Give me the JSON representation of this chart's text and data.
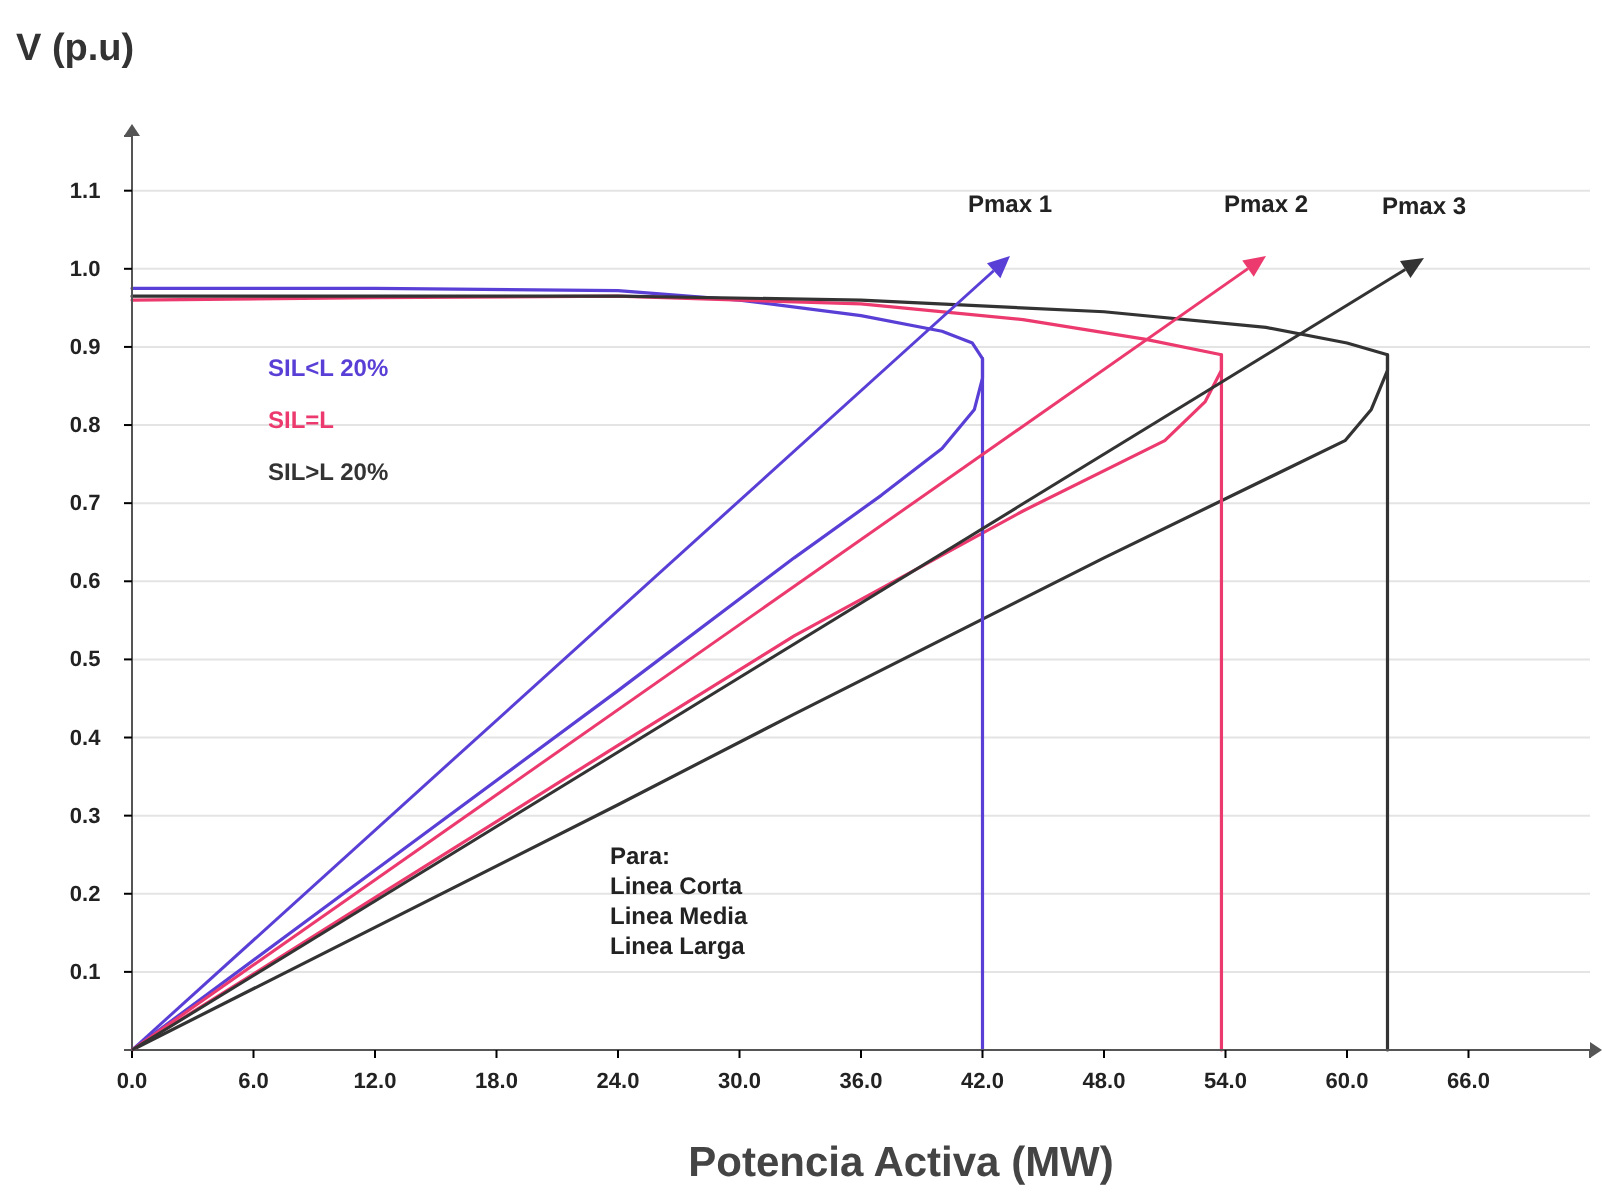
{
  "chart_data": {
    "type": "line",
    "xlabel": "Potencia Activa (MW)",
    "ylabel": "V (p.u)",
    "xlim": [
      0,
      72
    ],
    "ylim": [
      0,
      1.17
    ],
    "xticks": [
      {
        "value": 0,
        "label": "0.0"
      },
      {
        "value": 6,
        "label": "6.0"
      },
      {
        "value": 12,
        "label": "12.0"
      },
      {
        "value": 18,
        "label": "18.0"
      },
      {
        "value": 24,
        "label": "24.0"
      },
      {
        "value": 30,
        "label": "30.0"
      },
      {
        "value": 36,
        "label": "36.0"
      },
      {
        "value": 42,
        "label": "42.0"
      },
      {
        "value": 48,
        "label": "48.0"
      },
      {
        "value": 54,
        "label": "54.0"
      },
      {
        "value": 60,
        "label": "60.0"
      },
      {
        "value": 66,
        "label": "66.0"
      }
    ],
    "yticks": [
      0.1,
      0.2,
      0.3,
      0.4,
      0.5,
      0.6,
      0.7,
      0.8,
      0.9,
      {
        "value": 1,
        "label": "1.0"
      },
      1.1
    ],
    "grid": "y",
    "legend": "top left",
    "marker": "none",
    "line_style": "solid",
    "series": [
      {
        "name": "SIL<L 20%",
        "color": "#5a3fd6",
        "x": [
          0,
          12,
          24,
          30,
          36,
          40,
          41.5,
          42,
          42,
          41.6,
          40,
          37,
          32.7,
          24,
          12,
          0
        ],
        "values": [
          0.975,
          0.975,
          0.972,
          0.96,
          0.94,
          0.92,
          0.905,
          0.885,
          0.86,
          0.82,
          0.77,
          0.71,
          0.63,
          0.46,
          0.23,
          0
        ]
      },
      {
        "name": "SIL=L",
        "color": "#ec3a6e",
        "x": [
          0,
          12,
          24,
          36,
          44,
          50,
          53.8,
          53.8,
          53,
          51,
          44,
          32.7,
          24,
          12,
          0
        ],
        "values": [
          0.96,
          0.963,
          0.965,
          0.955,
          0.935,
          0.91,
          0.89,
          0.87,
          0.83,
          0.78,
          0.69,
          0.53,
          0.39,
          0.195,
          0
        ]
      },
      {
        "name": "SIL>L 20%",
        "color": "#333333",
        "x": [
          0,
          24,
          36,
          48,
          56,
          60,
          62,
          62,
          61.2,
          59.9,
          48,
          32.7,
          24,
          12,
          0
        ],
        "values": [
          0.965,
          0.965,
          0.96,
          0.945,
          0.925,
          0.905,
          0.89,
          0.87,
          0.82,
          0.78,
          0.63,
          0.43,
          0.314,
          0.157,
          0
        ]
      },
      {
        "color": "#5a3fd6",
        "x": [
          42,
          42
        ],
        "values": [
          0.885,
          0
        ]
      },
      {
        "color": "#ec3a6e",
        "x": [
          53.8,
          53.8
        ],
        "values": [
          0.89,
          0
        ]
      },
      {
        "color": "#333333",
        "x": [
          62,
          62
        ],
        "values": [
          0.89,
          0
        ]
      }
    ],
    "annotations": [
      "Pmax 1",
      "Pmax 2",
      "Pmax 3",
      "Para:",
      "Linea Corta",
      "Linea Media",
      "Linea Larga"
    ]
  }
}
